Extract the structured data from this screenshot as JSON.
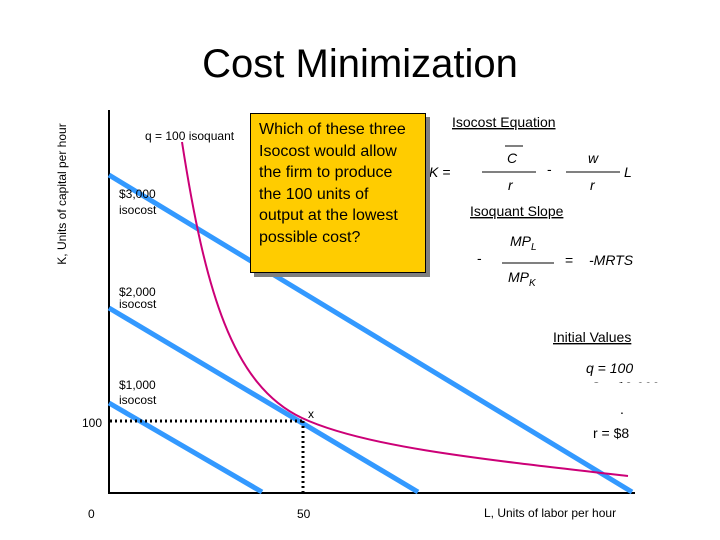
{
  "title": "Cost Minimization",
  "axes": {
    "ylabel": "K, Units of capital per hour",
    "xlabel": "L, Units of labor per hour",
    "tick_x_origin": "0",
    "tick_x_50": "50",
    "tick_y_100": "100"
  },
  "labels": {
    "isoquant": "q = 100 isoquant",
    "iso3000_a": "$3,000",
    "iso3000_b": "isocost",
    "iso2000_a": "$2,000",
    "iso2000_b": "isocost",
    "iso1000_a": "$1,000",
    "iso1000_b": "isocost",
    "point_x": "x"
  },
  "callout": "Which of these three Isocost would allow the firm to produce the 100 units of output at the lowest possible cost?",
  "isocost_equation": {
    "heading": "Isocost Equation",
    "k_eq": "K =",
    "C": "C",
    "r1": "r",
    "minus": "-",
    "w": "w",
    "r2": "r",
    "L": "L"
  },
  "isoquant_slope": {
    "heading": "Isoquant Slope",
    "minus": "-",
    "mpl": "MP",
    "mpl_sub": "L",
    "mpk": "MP",
    "mpk_sub": "K",
    "eq": "=",
    "mrts": "-MRTS"
  },
  "initial_values": {
    "heading": "Initial Values",
    "q": "q = 100",
    "c_partial": "C = $2,000",
    "w_partial": ".",
    "r": "r = $8"
  },
  "colors": {
    "isocost": "#3399ff",
    "isoquant": "#cc0077",
    "callout_bg": "#ffcc00"
  }
}
